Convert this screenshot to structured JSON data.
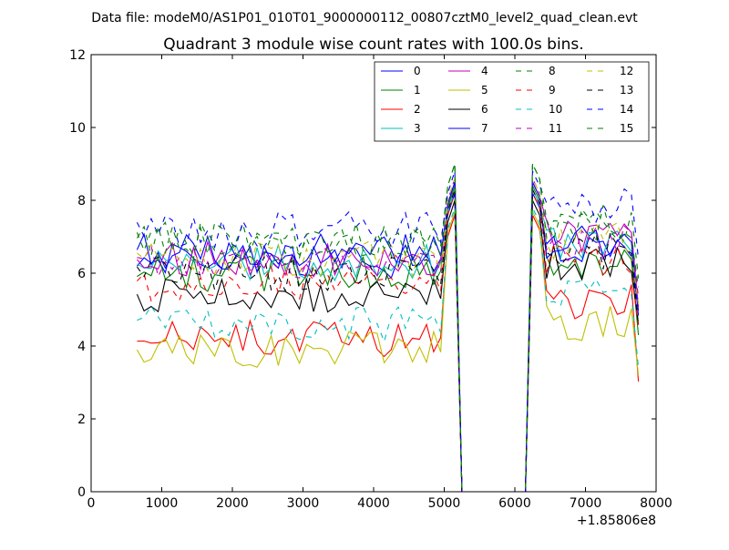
{
  "chart_data": {
    "type": "line",
    "suptitle": "Data file: modeM0/AS1P01_010T01_9000000112_00807cztM0_level2_quad_clean.evt",
    "title": "Quadrant 3 module wise count rates with 100.0s bins.",
    "xlabel": "",
    "ylabel": "",
    "x_offset_label": "+1.85806e8",
    "xlim": [
      0,
      8000
    ],
    "ylim": [
      0,
      12
    ],
    "xticks": [
      0,
      1000,
      2000,
      3000,
      4000,
      5000,
      6000,
      7000,
      8000
    ],
    "yticks": [
      0,
      2,
      4,
      6,
      8,
      10,
      12
    ],
    "xtick_labels": [
      "0",
      "1000",
      "2000",
      "3000",
      "4000",
      "5000",
      "6000",
      "7000",
      "8000"
    ],
    "ytick_labels": [
      "0",
      "2",
      "4",
      "6",
      "8",
      "10",
      "12"
    ],
    "legend_position": "top-right",
    "legend_columns": 4,
    "x_segments": [
      {
        "start": 650,
        "end": 5150,
        "step": 100
      },
      {
        "start": 5250,
        "end": 6150,
        "step": 100
      },
      {
        "start": 6250,
        "end": 7750,
        "step": 100
      }
    ],
    "series": [
      {
        "name": "0",
        "color": "#0000ff",
        "dash": "solid",
        "segment_levels": [
          6.3,
          0,
          6.6
        ],
        "peak": 8.2
      },
      {
        "name": "1",
        "color": "#008000",
        "dash": "solid",
        "segment_levels": [
          6.0,
          0,
          6.2
        ],
        "peak": 8.4
      },
      {
        "name": "2",
        "color": "#ff0000",
        "dash": "solid",
        "segment_levels": [
          4.2,
          0,
          5.2
        ],
        "peak": 7.6
      },
      {
        "name": "3",
        "color": "#00bfbf",
        "dash": "solid",
        "segment_levels": [
          6.3,
          0,
          6.8
        ],
        "peak": 8.3
      },
      {
        "name": "4",
        "color": "#bf00bf",
        "dash": "solid",
        "segment_levels": [
          6.4,
          0,
          7.0
        ],
        "peak": 8.5
      },
      {
        "name": "5",
        "color": "#bfbf00",
        "dash": "solid",
        "segment_levels": [
          3.9,
          0,
          4.6
        ],
        "peak": 7.7
      },
      {
        "name": "6",
        "color": "#000000",
        "dash": "solid",
        "segment_levels": [
          5.4,
          0,
          6.3
        ],
        "peak": 8.0
      },
      {
        "name": "7",
        "color": "#0000ff",
        "dash": "solid",
        "segment_levels": [
          6.6,
          0,
          6.8
        ],
        "peak": 8.5
      },
      {
        "name": "8",
        "color": "#008000",
        "dash": "dashed",
        "segment_levels": [
          6.9,
          0,
          7.3
        ],
        "peak": 9.0
      },
      {
        "name": "9",
        "color": "#ff0000",
        "dash": "dashed",
        "segment_levels": [
          5.7,
          0,
          6.3
        ],
        "peak": 8.2
      },
      {
        "name": "10",
        "color": "#00bfbf",
        "dash": "dashed",
        "segment_levels": [
          4.6,
          0,
          5.4
        ],
        "peak": 7.8
      },
      {
        "name": "11",
        "color": "#bf00bf",
        "dash": "dashed",
        "segment_levels": [
          6.3,
          0,
          6.8
        ],
        "peak": 8.6
      },
      {
        "name": "12",
        "color": "#bfbf00",
        "dash": "dashed",
        "segment_levels": [
          6.4,
          0,
          6.9
        ],
        "peak": 8.6
      },
      {
        "name": "13",
        "color": "#000000",
        "dash": "dashed",
        "segment_levels": [
          6.0,
          0,
          6.6
        ],
        "peak": 8.3
      },
      {
        "name": "14",
        "color": "#0000ff",
        "dash": "dashed",
        "segment_levels": [
          7.2,
          0,
          7.9
        ],
        "peak": 8.8
      },
      {
        "name": "15",
        "color": "#008000",
        "dash": "dashed",
        "segment_levels": [
          6.9,
          0,
          7.4
        ],
        "peak": 9.0
      }
    ]
  }
}
